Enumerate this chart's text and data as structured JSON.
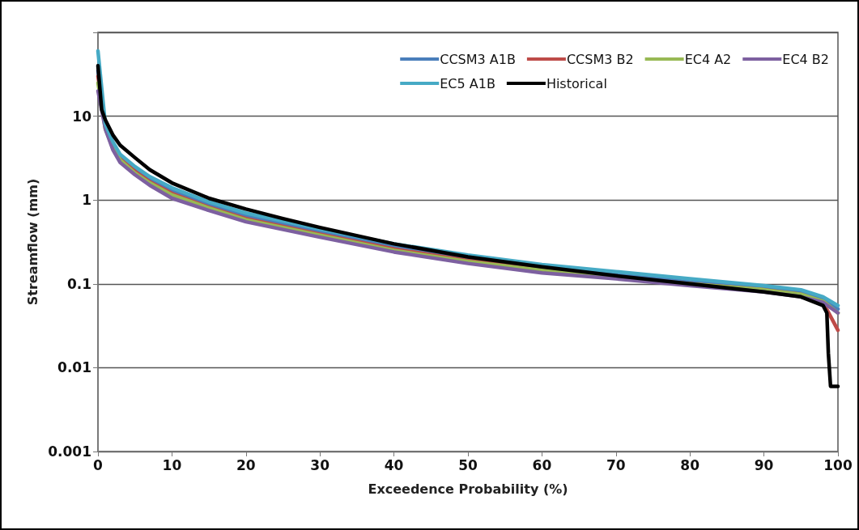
{
  "chart_data": {
    "type": "line",
    "xlabel": "Exceedence Probability (%)",
    "ylabel": "Streamflow (mm)",
    "xlim": [
      0,
      100
    ],
    "xticks": [
      0,
      10,
      20,
      30,
      40,
      50,
      60,
      70,
      80,
      90,
      100
    ],
    "ylim": [
      0.001,
      100
    ],
    "yticks": [
      0.001,
      0.01,
      0.1,
      1,
      10,
      {
        "value": 100,
        "label": null
      }
    ],
    "log": "y",
    "grid": "y",
    "legend": "top right",
    "marker": "none",
    "line_style": "solid",
    "x": [
      0,
      1,
      2,
      3,
      5,
      7,
      10,
      15,
      20,
      30,
      40,
      50,
      60,
      70,
      80,
      90,
      95,
      98,
      100
    ],
    "series": [
      {
        "name": "CCSM3 A1B",
        "color": "#4a7ebb",
        "values": [
          35,
          7.5,
          4.7,
          3.3,
          2.3,
          1.75,
          1.3,
          0.88,
          0.65,
          0.42,
          0.28,
          0.2,
          0.16,
          0.13,
          0.105,
          0.09,
          0.08,
          0.065,
          0.05
        ]
      },
      {
        "name": "CCSM3 B2",
        "color": "#be4b48",
        "values": [
          30,
          7.5,
          4.5,
          3.2,
          2.2,
          1.65,
          1.2,
          0.82,
          0.6,
          0.39,
          0.26,
          0.19,
          0.15,
          0.12,
          0.1,
          0.085,
          0.075,
          0.06,
          0.028
        ]
      },
      {
        "name": "EC4 A2",
        "color": "#98b954",
        "values": [
          25,
          7,
          4.3,
          3,
          2.1,
          1.6,
          1.15,
          0.8,
          0.58,
          0.38,
          0.25,
          0.185,
          0.145,
          0.117,
          0.1,
          0.085,
          0.075,
          0.062,
          0.045
        ]
      },
      {
        "name": "EC4 B2",
        "color": "#7d60a0",
        "values": [
          20,
          7,
          4,
          2.8,
          2,
          1.5,
          1.05,
          0.75,
          0.55,
          0.36,
          0.24,
          0.175,
          0.135,
          0.115,
          0.095,
          0.08,
          0.07,
          0.06,
          0.045
        ]
      },
      {
        "name": "EC5 A1B",
        "color": "#46aac5",
        "values": [
          60,
          8,
          5,
          3.5,
          2.5,
          1.9,
          1.4,
          0.95,
          0.7,
          0.45,
          0.3,
          0.22,
          0.17,
          0.14,
          0.115,
          0.095,
          0.085,
          0.07,
          0.055
        ]
      },
      {
        "name": "Historical",
        "color": "#000000",
        "x": [
          0,
          0.5,
          1,
          2,
          3,
          5,
          7,
          10,
          15,
          20,
          25,
          30,
          40,
          50,
          60,
          70,
          80,
          90,
          95,
          98,
          98.5,
          98.7,
          99,
          100
        ],
        "values": [
          40,
          12,
          9,
          6,
          4.5,
          3.2,
          2.3,
          1.6,
          1.05,
          0.78,
          0.6,
          0.47,
          0.3,
          0.21,
          0.16,
          0.125,
          0.1,
          0.08,
          0.07,
          0.055,
          0.045,
          0.015,
          0.006,
          0.006
        ]
      }
    ]
  }
}
